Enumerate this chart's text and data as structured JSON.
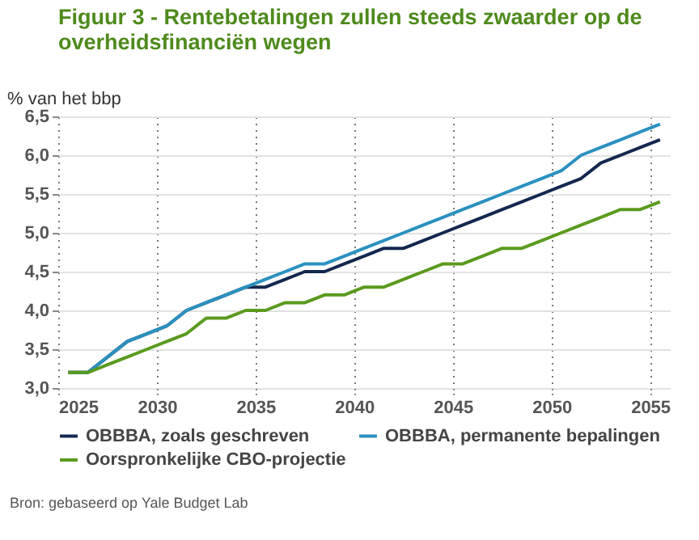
{
  "chart_data": {
    "type": "line",
    "title": "Figuur 3 - Rentebetalingen zullen steeds zwaarder op de overheidsfinanciën wegen",
    "ylabel": "% van het bbp",
    "x": [
      2025.5,
      2026.5,
      2027.5,
      2028.5,
      2029.5,
      2030.5,
      2031.5,
      2032.5,
      2033.5,
      2034.5,
      2035.5,
      2036.5,
      2037.5,
      2038.5,
      2039.5,
      2040.5,
      2041.5,
      2042.5,
      2043.5,
      2044.5,
      2045.5,
      2046.5,
      2047.5,
      2048.5,
      2049.5,
      2050.5,
      2051.5,
      2052.5,
      2053.5,
      2054.5,
      2055.5
    ],
    "series": [
      {
        "name": "OBBBA, zoals geschreven",
        "color": "#13284f",
        "values": [
          3.2,
          3.2,
          3.4,
          3.6,
          3.7,
          3.8,
          4.0,
          4.1,
          4.2,
          4.3,
          4.3,
          4.4,
          4.5,
          4.5,
          4.6,
          4.7,
          4.8,
          4.8,
          4.9,
          5.0,
          5.1,
          5.2,
          5.3,
          5.4,
          5.5,
          5.6,
          5.7,
          5.9,
          6.0,
          6.1,
          6.2
        ]
      },
      {
        "name": "OBBBA, permanente bepalingen",
        "color": "#2b91c0",
        "values": [
          3.2,
          3.2,
          3.4,
          3.6,
          3.7,
          3.8,
          4.0,
          4.1,
          4.2,
          4.3,
          4.4,
          4.5,
          4.6,
          4.6,
          4.7,
          4.8,
          4.9,
          5.0,
          5.1,
          5.2,
          5.3,
          5.4,
          5.5,
          5.6,
          5.7,
          5.8,
          6.0,
          6.1,
          6.2,
          6.3,
          6.4
        ]
      },
      {
        "name": "Oorspronkelijke CBO-projectie",
        "color": "#5a9a1e",
        "values": [
          3.2,
          3.2,
          3.3,
          3.4,
          3.5,
          3.6,
          3.7,
          3.9,
          3.9,
          4.0,
          4.0,
          4.1,
          4.1,
          4.2,
          4.2,
          4.3,
          4.3,
          4.4,
          4.5,
          4.6,
          4.6,
          4.7,
          4.8,
          4.8,
          4.9,
          5.0,
          5.1,
          5.2,
          5.3,
          5.3,
          5.4
        ]
      }
    ],
    "xlim": [
      2025,
      2056
    ],
    "xticks": [
      2025,
      2030,
      2035,
      2040,
      2045,
      2050,
      2055
    ],
    "ylim": [
      3.0,
      6.5
    ],
    "yticks": [
      {
        "value": 3.0,
        "label": "3,0"
      },
      {
        "value": 3.5,
        "label": "3,5"
      },
      {
        "value": 4.0,
        "label": "4,0"
      },
      {
        "value": 4.5,
        "label": "4,5"
      },
      {
        "value": 5.0,
        "label": "5,0"
      },
      {
        "value": 5.5,
        "label": "5,5"
      },
      {
        "value": 6.0,
        "label": "6,0"
      },
      {
        "value": 6.5,
        "label": "6,5"
      }
    ],
    "grid": true,
    "legend": "bottom",
    "line_style": "solid",
    "marker": "none",
    "annotations": [
      "Bron: gebaseerd op Yale Budget Lab"
    ]
  }
}
